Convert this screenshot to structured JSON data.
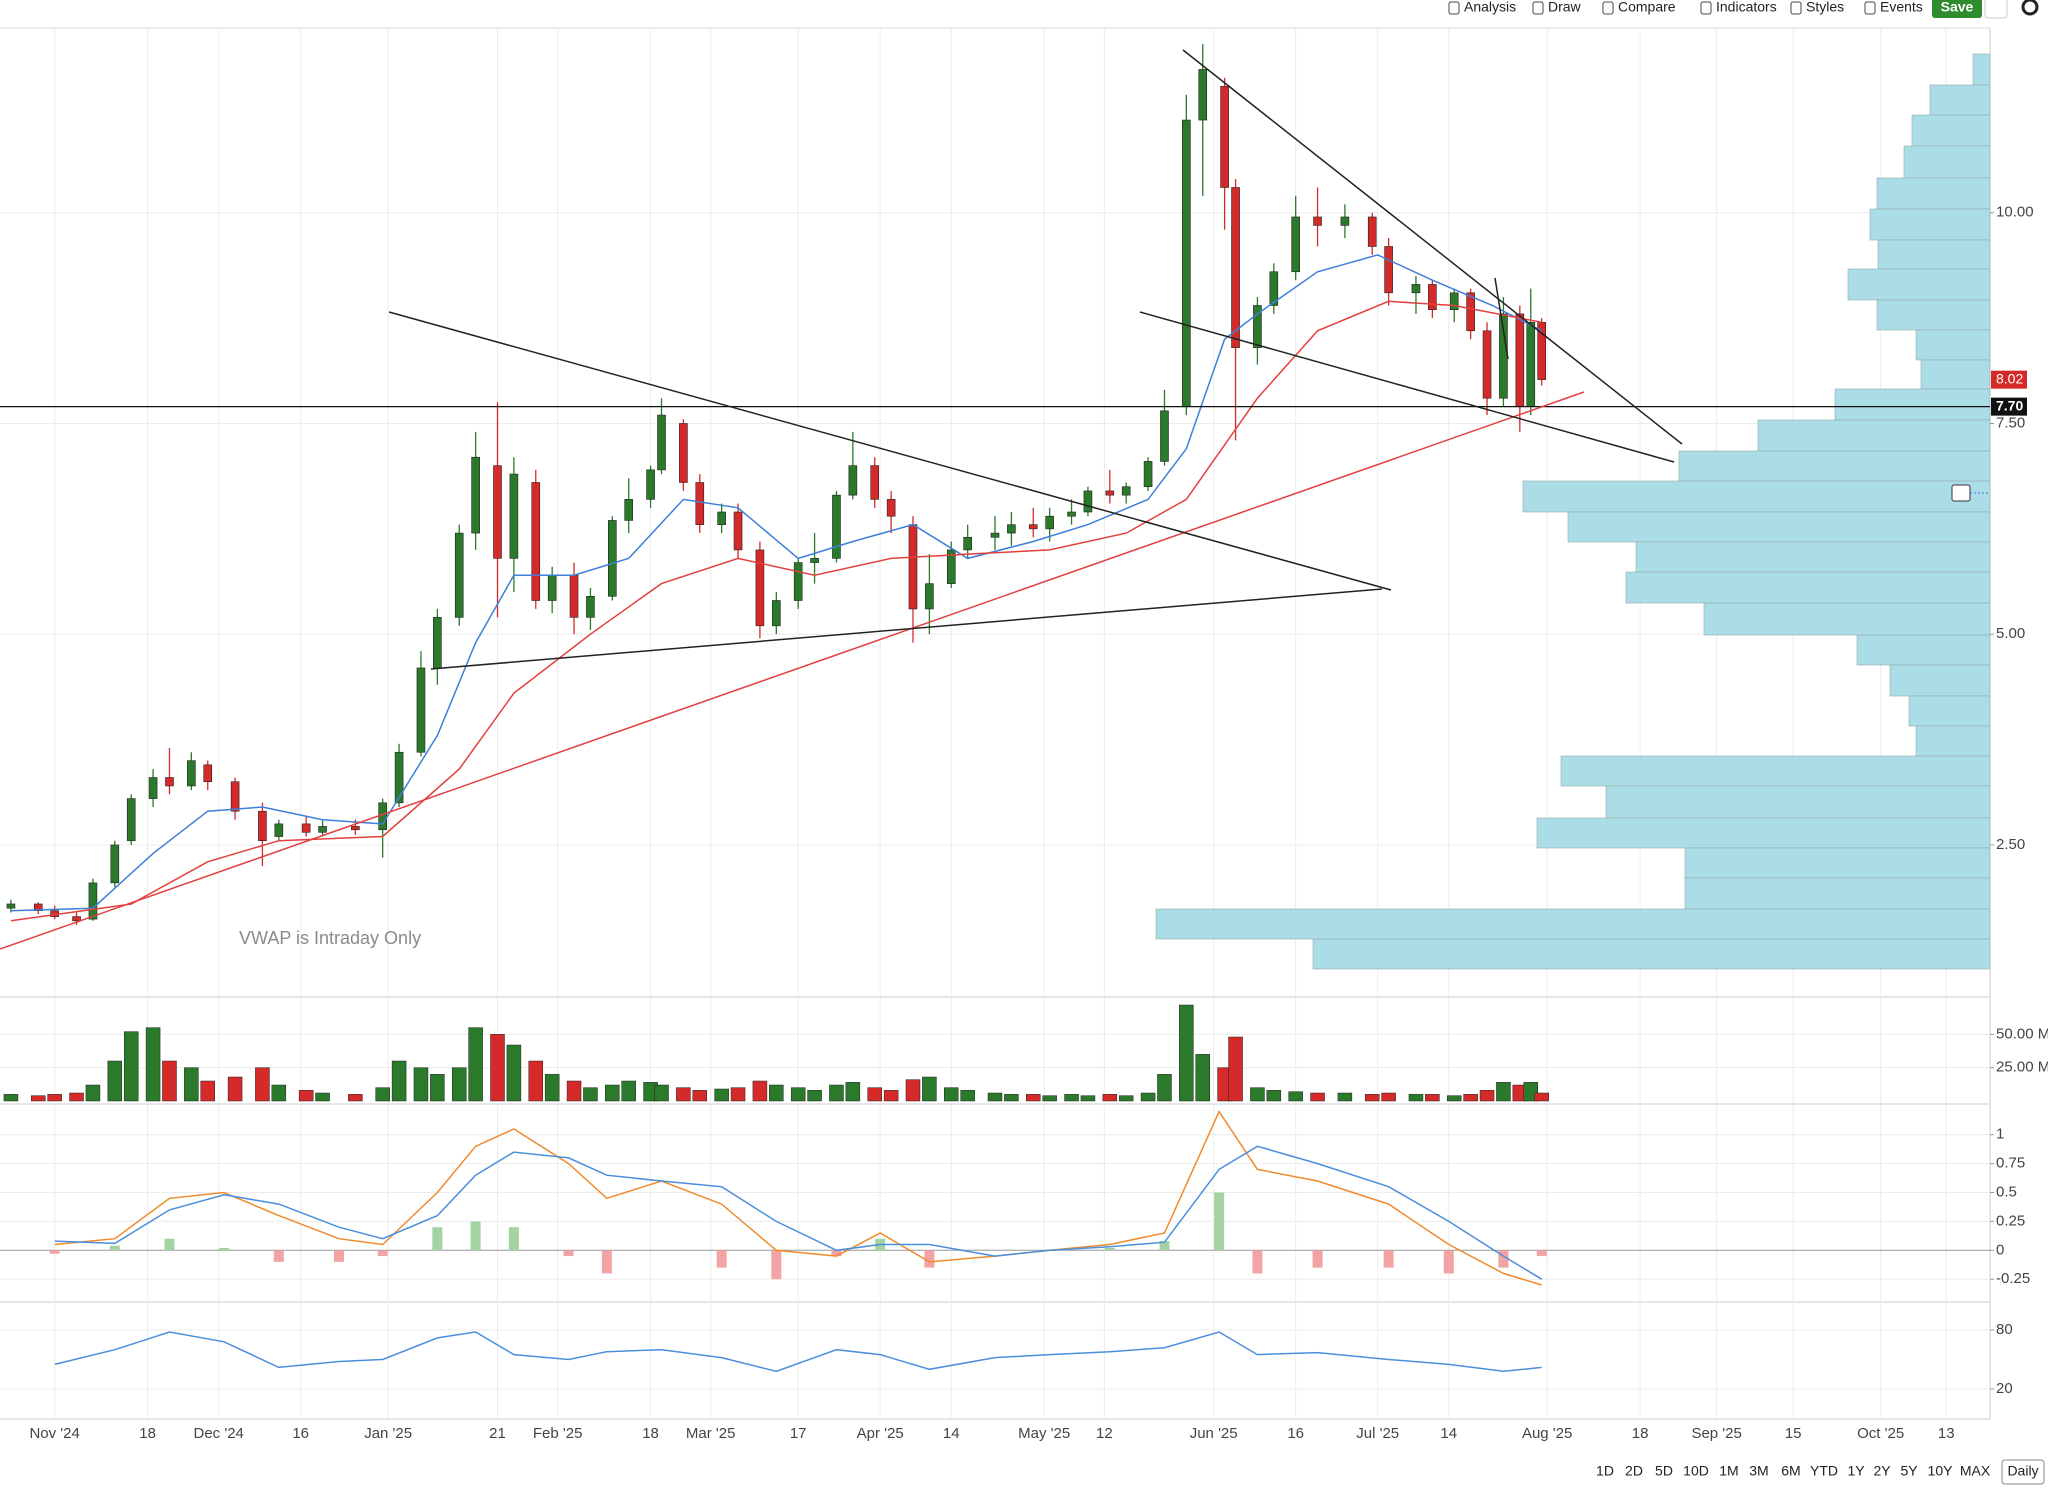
{
  "toolbar": {
    "buttons": [
      "Analysis",
      "Draw",
      "Compare",
      "Indicators",
      "Styles",
      "Events"
    ],
    "save": "Save"
  },
  "chart_data": [
    {
      "type": "candlestick",
      "x": [
        "2024-10-24",
        "2024-10-29",
        "2024-11-01",
        "2024-11-05",
        "2024-11-08",
        "2024-11-12",
        "2024-11-15",
        "2024-11-19",
        "2024-11-22",
        "2024-11-26",
        "2024-11-29",
        "2024-12-04",
        "2024-12-09",
        "2024-12-12",
        "2024-12-17",
        "2024-12-20",
        "2024-12-26",
        "2024-12-31",
        "2025-01-03",
        "2025-01-07",
        "2025-01-10",
        "2025-01-14",
        "2025-01-17",
        "2025-01-21",
        "2025-01-24",
        "2025-01-28",
        "2025-01-31",
        "2025-02-04",
        "2025-02-07",
        "2025-02-11",
        "2025-02-14",
        "2025-02-18",
        "2025-02-20",
        "2025-02-24",
        "2025-02-27",
        "2025-03-03",
        "2025-03-06",
        "2025-03-10",
        "2025-03-13",
        "2025-03-17",
        "2025-03-20",
        "2025-03-24",
        "2025-03-27",
        "2025-03-31",
        "2025-04-03",
        "2025-04-07",
        "2025-04-10",
        "2025-04-14",
        "2025-04-17",
        "2025-04-22",
        "2025-04-25",
        "2025-04-29",
        "2025-05-02",
        "2025-05-06",
        "2025-05-09",
        "2025-05-13",
        "2025-05-16",
        "2025-05-20",
        "2025-05-23",
        "2025-05-27",
        "2025-05-30",
        "2025-06-03",
        "2025-06-05",
        "2025-06-09",
        "2025-06-12",
        "2025-06-16",
        "2025-06-20",
        "2025-06-25",
        "2025-06-30",
        "2025-07-03",
        "2025-07-08",
        "2025-07-11",
        "2025-07-15",
        "2025-07-18",
        "2025-07-21",
        "2025-07-24",
        "2025-07-27",
        "2025-07-29",
        "2025-07-31"
      ],
      "open": [
        1.75,
        1.8,
        1.72,
        1.65,
        1.62,
        2.05,
        2.55,
        3.05,
        3.3,
        3.2,
        3.45,
        3.25,
        2.9,
        2.6,
        2.75,
        2.65,
        2.72,
        2.68,
        3.0,
        3.6,
        4.6,
        5.2,
        6.2,
        7.0,
        5.9,
        6.8,
        5.4,
        5.7,
        5.2,
        5.45,
        6.35,
        6.6,
        6.95,
        7.5,
        6.8,
        6.3,
        6.45,
        6.0,
        5.1,
        5.4,
        5.85,
        5.9,
        6.65,
        7.0,
        6.6,
        6.3,
        5.3,
        5.6,
        6.0,
        6.15,
        6.2,
        6.3,
        6.25,
        6.4,
        6.45,
        6.7,
        6.65,
        6.75,
        7.05,
        7.7,
        11.1,
        11.5,
        10.3,
        8.4,
        8.9,
        9.3,
        9.95,
        9.85,
        9.95,
        9.6,
        9.05,
        9.15,
        8.85,
        9.05,
        8.6,
        7.8,
        8.8,
        7.7,
        8.7
      ],
      "high": [
        1.85,
        1.82,
        1.78,
        1.7,
        2.1,
        2.55,
        3.1,
        3.4,
        3.65,
        3.6,
        3.5,
        3.3,
        3.0,
        2.8,
        2.85,
        2.8,
        2.8,
        3.05,
        3.7,
        4.8,
        5.3,
        6.3,
        7.4,
        7.75,
        7.1,
        6.95,
        5.8,
        5.85,
        5.55,
        6.4,
        6.85,
        7.0,
        7.8,
        7.55,
        6.9,
        6.55,
        6.55,
        6.1,
        5.5,
        5.9,
        6.2,
        6.7,
        7.4,
        7.1,
        6.7,
        6.4,
        5.95,
        6.1,
        6.3,
        6.4,
        6.45,
        6.5,
        6.5,
        6.6,
        6.75,
        6.95,
        6.8,
        7.1,
        7.9,
        11.4,
        12.0,
        11.6,
        10.4,
        9.0,
        9.4,
        10.2,
        10.3,
        10.1,
        10.0,
        9.7,
        9.25,
        9.2,
        9.1,
        9.1,
        8.7,
        9.0,
        8.9,
        9.1,
        8.75
      ],
      "low": [
        1.7,
        1.68,
        1.62,
        1.55,
        1.6,
        2.0,
        2.5,
        2.95,
        3.1,
        3.15,
        3.15,
        2.8,
        2.25,
        2.55,
        2.6,
        2.6,
        2.62,
        2.35,
        2.95,
        3.55,
        4.4,
        5.1,
        6.0,
        5.2,
        5.5,
        5.3,
        5.25,
        5.0,
        5.05,
        5.4,
        6.2,
        6.5,
        6.9,
        6.7,
        6.2,
        6.2,
        5.9,
        4.95,
        5.0,
        5.3,
        5.6,
        5.85,
        6.6,
        6.5,
        6.2,
        4.9,
        5.0,
        5.55,
        5.9,
        6.0,
        6.05,
        6.15,
        6.1,
        6.3,
        6.4,
        6.55,
        6.55,
        6.7,
        7.0,
        7.6,
        10.2,
        9.8,
        7.3,
        8.2,
        8.8,
        9.2,
        9.6,
        9.7,
        9.5,
        8.9,
        8.8,
        8.75,
        8.7,
        8.5,
        7.6,
        7.7,
        7.4,
        7.6,
        7.95
      ],
      "close": [
        1.8,
        1.72,
        1.65,
        1.6,
        2.05,
        2.5,
        3.05,
        3.3,
        3.2,
        3.5,
        3.25,
        2.9,
        2.55,
        2.75,
        2.65,
        2.72,
        2.68,
        3.0,
        3.6,
        4.6,
        5.2,
        6.2,
        7.1,
        5.9,
        6.9,
        5.4,
        5.7,
        5.2,
        5.45,
        6.35,
        6.6,
        6.95,
        7.6,
        6.8,
        6.3,
        6.45,
        6.0,
        5.1,
        5.4,
        5.85,
        5.9,
        6.65,
        7.0,
        6.6,
        6.4,
        5.3,
        5.6,
        6.0,
        6.15,
        6.2,
        6.3,
        6.25,
        6.4,
        6.45,
        6.7,
        6.65,
        6.75,
        7.05,
        7.65,
        11.1,
        11.7,
        10.3,
        8.4,
        8.9,
        9.3,
        9.95,
        9.85,
        9.95,
        9.6,
        9.05,
        9.15,
        8.85,
        9.05,
        8.6,
        7.8,
        8.8,
        7.7,
        8.7,
        8.02
      ],
      "up_color": "#2b7a2b",
      "down_color": "#d42a2a",
      "xlim": [
        "2024-10-22",
        "2025-10-21"
      ],
      "xticks": [
        {
          "value": "2024-11-01",
          "label": "Nov '24"
        },
        {
          "value": "2024-11-18",
          "label": "18"
        },
        {
          "value": "2024-12-01",
          "label": "Dec '24"
        },
        {
          "value": "2024-12-16",
          "label": "16"
        },
        {
          "value": "2025-01-01",
          "label": "Jan '25"
        },
        {
          "value": "2025-01-21",
          "label": "21"
        },
        {
          "value": "2025-02-01",
          "label": "Feb '25"
        },
        {
          "value": "2025-02-18",
          "label": "18"
        },
        {
          "value": "2025-03-01",
          "label": "Mar '25"
        },
        {
          "value": "2025-03-17",
          "label": "17"
        },
        {
          "value": "2025-04-01",
          "label": "Apr '25"
        },
        {
          "value": "2025-04-14",
          "label": "14"
        },
        {
          "value": "2025-05-01",
          "label": "May '25"
        },
        {
          "value": "2025-05-12",
          "label": "12"
        },
        {
          "value": "2025-06-01",
          "label": "Jun '25"
        },
        {
          "value": "2025-06-16",
          "label": "16"
        },
        {
          "value": "2025-07-01",
          "label": "Jul '25"
        },
        {
          "value": "2025-07-14",
          "label": "14"
        },
        {
          "value": "2025-08-01",
          "label": "Aug '25"
        },
        {
          "value": "2025-08-18",
          "label": "18"
        },
        {
          "value": "2025-09-01",
          "label": "Sep '25"
        },
        {
          "value": "2025-09-15",
          "label": "15"
        },
        {
          "value": "2025-10-01",
          "label": "Oct '25"
        },
        {
          "value": "2025-10-13",
          "label": "13"
        }
      ],
      "ylim": [
        0.72,
        12.18
      ],
      "yticks": [
        {
          "value": 10,
          "label": "10.00"
        },
        {
          "value": 7.5,
          "label": "7.50"
        },
        {
          "value": 5,
          "label": "5.00"
        },
        {
          "value": 2.5,
          "label": "2.50"
        }
      ],
      "grid": true,
      "last_price": 8.02,
      "hline": {
        "value": 7.7,
        "label": "7.70"
      },
      "annotation": "VWAP is Intraday Only",
      "ma_series": [
        {
          "color": "#3d7fd9",
          "x": [
            "2024-10-24",
            "2024-11-08",
            "2024-11-19",
            "2024-11-29",
            "2024-12-09",
            "2024-12-20",
            "2024-12-31",
            "2025-01-10",
            "2025-01-17",
            "2025-01-24",
            "2025-02-04",
            "2025-02-14",
            "2025-02-24",
            "2025-03-06",
            "2025-03-17",
            "2025-03-27",
            "2025-04-07",
            "2025-04-17",
            "2025-04-29",
            "2025-05-09",
            "2025-05-20",
            "2025-05-27",
            "2025-06-03",
            "2025-06-09",
            "2025-06-20",
            "2025-07-01",
            "2025-07-11",
            "2025-07-22",
            "2025-07-31"
          ],
          "values": [
            1.72,
            1.75,
            2.4,
            2.9,
            2.95,
            2.8,
            2.75,
            3.8,
            4.9,
            5.7,
            5.7,
            5.9,
            6.6,
            6.5,
            5.9,
            6.1,
            6.3,
            5.9,
            6.1,
            6.3,
            6.6,
            7.2,
            8.5,
            8.8,
            9.3,
            9.5,
            9.2,
            8.9,
            8.6
          ]
        },
        {
          "color": "#e2403d",
          "x": [
            "2024-10-24",
            "2024-11-15",
            "2024-11-29",
            "2024-12-12",
            "2024-12-31",
            "2025-01-14",
            "2025-01-24",
            "2025-02-07",
            "2025-02-20",
            "2025-03-06",
            "2025-03-20",
            "2025-04-03",
            "2025-04-17",
            "2025-05-02",
            "2025-05-16",
            "2025-05-27",
            "2025-06-09",
            "2025-06-20",
            "2025-07-03",
            "2025-07-15",
            "2025-07-31"
          ],
          "values": [
            1.6,
            1.8,
            2.3,
            2.55,
            2.6,
            3.4,
            4.3,
            5.0,
            5.6,
            5.9,
            5.7,
            5.9,
            5.95,
            6.0,
            6.2,
            6.6,
            7.8,
            8.6,
            8.95,
            8.9,
            8.7
          ]
        }
      ]
    },
    {
      "type": "bar",
      "values": [
        5,
        4,
        5,
        6,
        12,
        30,
        52,
        55,
        30,
        25,
        15,
        18,
        25,
        12,
        8,
        6,
        5,
        10,
        30,
        25,
        20,
        25,
        55,
        50,
        42,
        30,
        20,
        15,
        10,
        12,
        15,
        14,
        12,
        10,
        8,
        9,
        10,
        15,
        12,
        10,
        8,
        12,
        14,
        10,
        8,
        16,
        18,
        10,
        8,
        6,
        5,
        5,
        4,
        5,
        4,
        5,
        4,
        6,
        20,
        72,
        35,
        25,
        48,
        10,
        8,
        7,
        6,
        6,
        5,
        6,
        5,
        5,
        4,
        5,
        8,
        14,
        12,
        14,
        6
      ],
      "ylim": [
        0,
        76.5
      ],
      "yticks": [
        {
          "value": 50,
          "label": "50.00 M"
        },
        {
          "value": 25,
          "label": "25.00 M"
        }
      ]
    },
    {
      "type": "macd",
      "x": [
        "2024-11-01",
        "2024-11-12",
        "2024-11-22",
        "2024-12-02",
        "2024-12-12",
        "2024-12-23",
        "2024-12-31",
        "2025-01-10",
        "2025-01-17",
        "2025-01-24",
        "2025-02-03",
        "2025-02-10",
        "2025-02-20",
        "2025-03-03",
        "2025-03-13",
        "2025-03-24",
        "2025-04-01",
        "2025-04-10",
        "2025-04-22",
        "2025-05-02",
        "2025-05-13",
        "2025-05-23",
        "2025-06-02",
        "2025-06-09",
        "2025-06-20",
        "2025-07-03",
        "2025-07-14",
        "2025-07-24",
        "2025-07-31"
      ],
      "macd": [
        0.05,
        0.1,
        0.45,
        0.5,
        0.3,
        0.1,
        0.05,
        0.5,
        0.9,
        1.05,
        0.75,
        0.45,
        0.6,
        0.4,
        0,
        -0.05,
        0.15,
        -0.1,
        -0.05,
        0,
        0.05,
        0.15,
        1.2,
        0.7,
        0.6,
        0.4,
        0.05,
        -0.2,
        -0.3
      ],
      "signal": [
        0.08,
        0.06,
        0.35,
        0.48,
        0.4,
        0.2,
        0.1,
        0.3,
        0.65,
        0.85,
        0.8,
        0.65,
        0.6,
        0.55,
        0.25,
        0,
        0.05,
        0.05,
        -0.05,
        0,
        0.03,
        0.07,
        0.7,
        0.9,
        0.75,
        0.55,
        0.25,
        -0.05,
        -0.25
      ],
      "histogram": [
        -0.03,
        0.04,
        0.1,
        0.02,
        -0.1,
        -0.1,
        -0.05,
        0.2,
        0.25,
        0.2,
        -0.05,
        -0.2,
        0,
        -0.15,
        -0.25,
        -0.05,
        0.1,
        -0.15,
        0,
        0,
        0.02,
        0.08,
        0.5,
        -0.2,
        -0.15,
        -0.15,
        -0.2,
        -0.15,
        -0.05
      ],
      "macd_color": "#f08a2c",
      "signal_color": "#4a8fdc",
      "hist_up_color": "#a3d3a3",
      "hist_down_color": "#f2a3a3",
      "ylim": [
        -0.43,
        1.24
      ],
      "yticks": [
        1,
        0.75,
        0.5,
        0.25,
        0,
        -0.25
      ]
    },
    {
      "type": "line",
      "values": [
        45,
        60,
        78,
        68,
        42,
        48,
        50,
        72,
        78,
        55,
        50,
        58,
        60,
        52,
        38,
        60,
        55,
        40,
        52,
        55,
        58,
        62,
        78,
        55,
        57,
        50,
        45,
        38,
        42
      ],
      "color": "#4a8fdc",
      "ylim": [
        -9.5,
        107.5
      ],
      "yticks": [
        80,
        20
      ]
    }
  ],
  "range_buttons": [
    "1D",
    "2D",
    "5D",
    "10D",
    "1M",
    "3M",
    "6M",
    "YTD",
    "1Y",
    "2Y",
    "5Y",
    "10Y",
    "MAX"
  ],
  "interval": "Daily"
}
